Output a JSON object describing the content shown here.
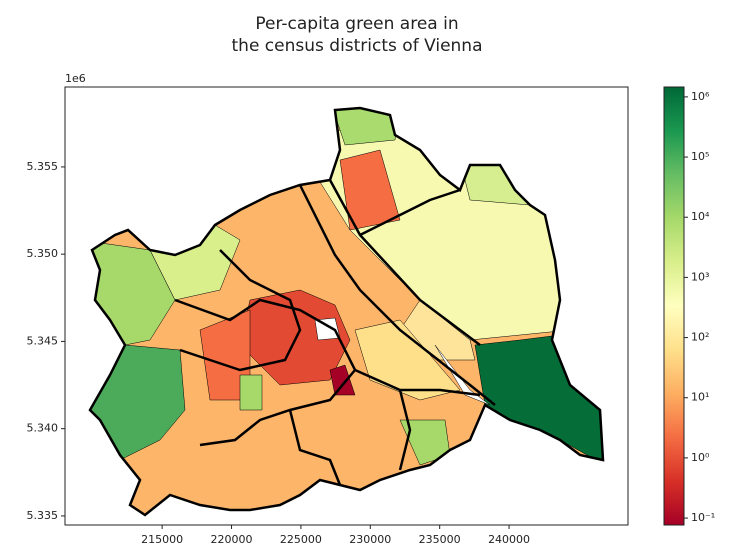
{
  "chart_data": {
    "type": "choropleth",
    "title": [
      "Per-capita green area in",
      "the census districts of Vienna"
    ],
    "offset_text": "1e6",
    "xlim": [
      208000,
      248570
    ],
    "xticks": [
      215000,
      220000,
      225000,
      230000,
      235000,
      240000
    ],
    "ylim": [
      5334480,
      5359580
    ],
    "yticks": [
      {
        "value": 5335000,
        "label": "5.335"
      },
      {
        "value": 5340000,
        "label": "5.340"
      },
      {
        "value": 5345000,
        "label": "5.345"
      },
      {
        "value": 5350000,
        "label": "5.350"
      },
      {
        "value": 5355000,
        "label": "5.355"
      }
    ],
    "colorbar": {
      "log": true,
      "clim": [
        0.0767,
        1460000
      ],
      "colormap": [
        "#a50026",
        "#d73027",
        "#f46d43",
        "#fdae61",
        "#fee08b",
        "#ffffbf",
        "#d9ef8b",
        "#a6d96a",
        "#66bd63",
        "#1a9850",
        "#006837"
      ],
      "ticks": [
        {
          "value": 0.1,
          "label": "10⁻¹"
        },
        {
          "value": 1,
          "label": "10⁰"
        },
        {
          "value": 10,
          "label": "10¹"
        },
        {
          "value": 100,
          "label": "10²"
        },
        {
          "value": 1000,
          "label": "10³"
        },
        {
          "value": 10000,
          "label": "10⁴"
        },
        {
          "value": 100000,
          "label": "10⁵"
        },
        {
          "value": 1000000,
          "label": "10⁶"
        }
      ]
    }
  }
}
